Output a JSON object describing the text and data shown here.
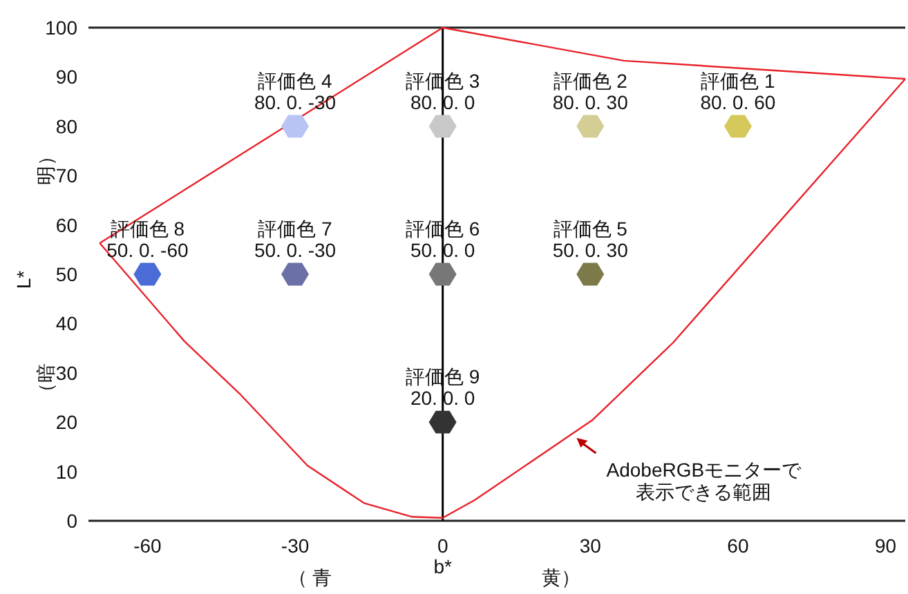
{
  "chart_data": {
    "type": "scatter",
    "xlabel": "b*",
    "ylabel": "L*",
    "xlim": [
      -72,
      94
    ],
    "ylim": [
      0,
      100
    ],
    "xticks": [
      -60,
      -30,
      0,
      30,
      60,
      90
    ],
    "yticks": [
      0,
      10,
      20,
      30,
      40,
      50,
      60,
      70,
      80,
      90,
      100
    ],
    "grid": false,
    "series": [
      {
        "x": [
          60,
          30,
          0,
          -30,
          30,
          0,
          -30,
          -60,
          0
        ],
        "values": [
          80,
          80,
          80,
          80,
          50,
          50,
          50,
          50,
          20
        ],
        "colors": [
          "#d4c95a",
          "#d4cd94",
          "#c8c8c8",
          "#b8c4f4",
          "#7d7a4a",
          "#777777",
          "#6b70a5",
          "#4b6bd6",
          "#333333"
        ],
        "value_labels": [
          "評価色 1\n80. 0. 60",
          "評価色 2\n80. 0. 30",
          "評価色 3\n80. 0. 0",
          "評価色 4\n80. 0. -30",
          "評価色 5\n50. 0. 30",
          "評価色 6\n50. 0. 0",
          "評価色 7\n50. 0. -30",
          "評価色 8\n50. 0. -60",
          "評価色 9\n20. 0. 0"
        ]
      },
      {
        "type": "line",
        "color": "#e8212a",
        "x": [
          -69.7,
          0,
          36.8,
          94
        ],
        "values": [
          56.3,
          100,
          93.3,
          89.6
        ]
      },
      {
        "type": "line",
        "color": "#e8212a",
        "x": [
          -69.7,
          -52.5,
          -41.3,
          -27.5,
          -16,
          -6.2,
          0,
          6.5,
          30.4,
          46.8,
          94
        ],
        "values": [
          56.3,
          36.4,
          25.8,
          11.2,
          3.6,
          0.8,
          0.6,
          4.2,
          20.4,
          36.1,
          89.6
        ]
      }
    ],
    "ref_lines": [
      {
        "axis": "x",
        "value": 0,
        "color": "#000000"
      }
    ],
    "annotations": [
      "AdobeRGBモニターで表示できる範囲",
      "（ 青",
      "黄）",
      "明）",
      "（暗"
    ]
  }
}
